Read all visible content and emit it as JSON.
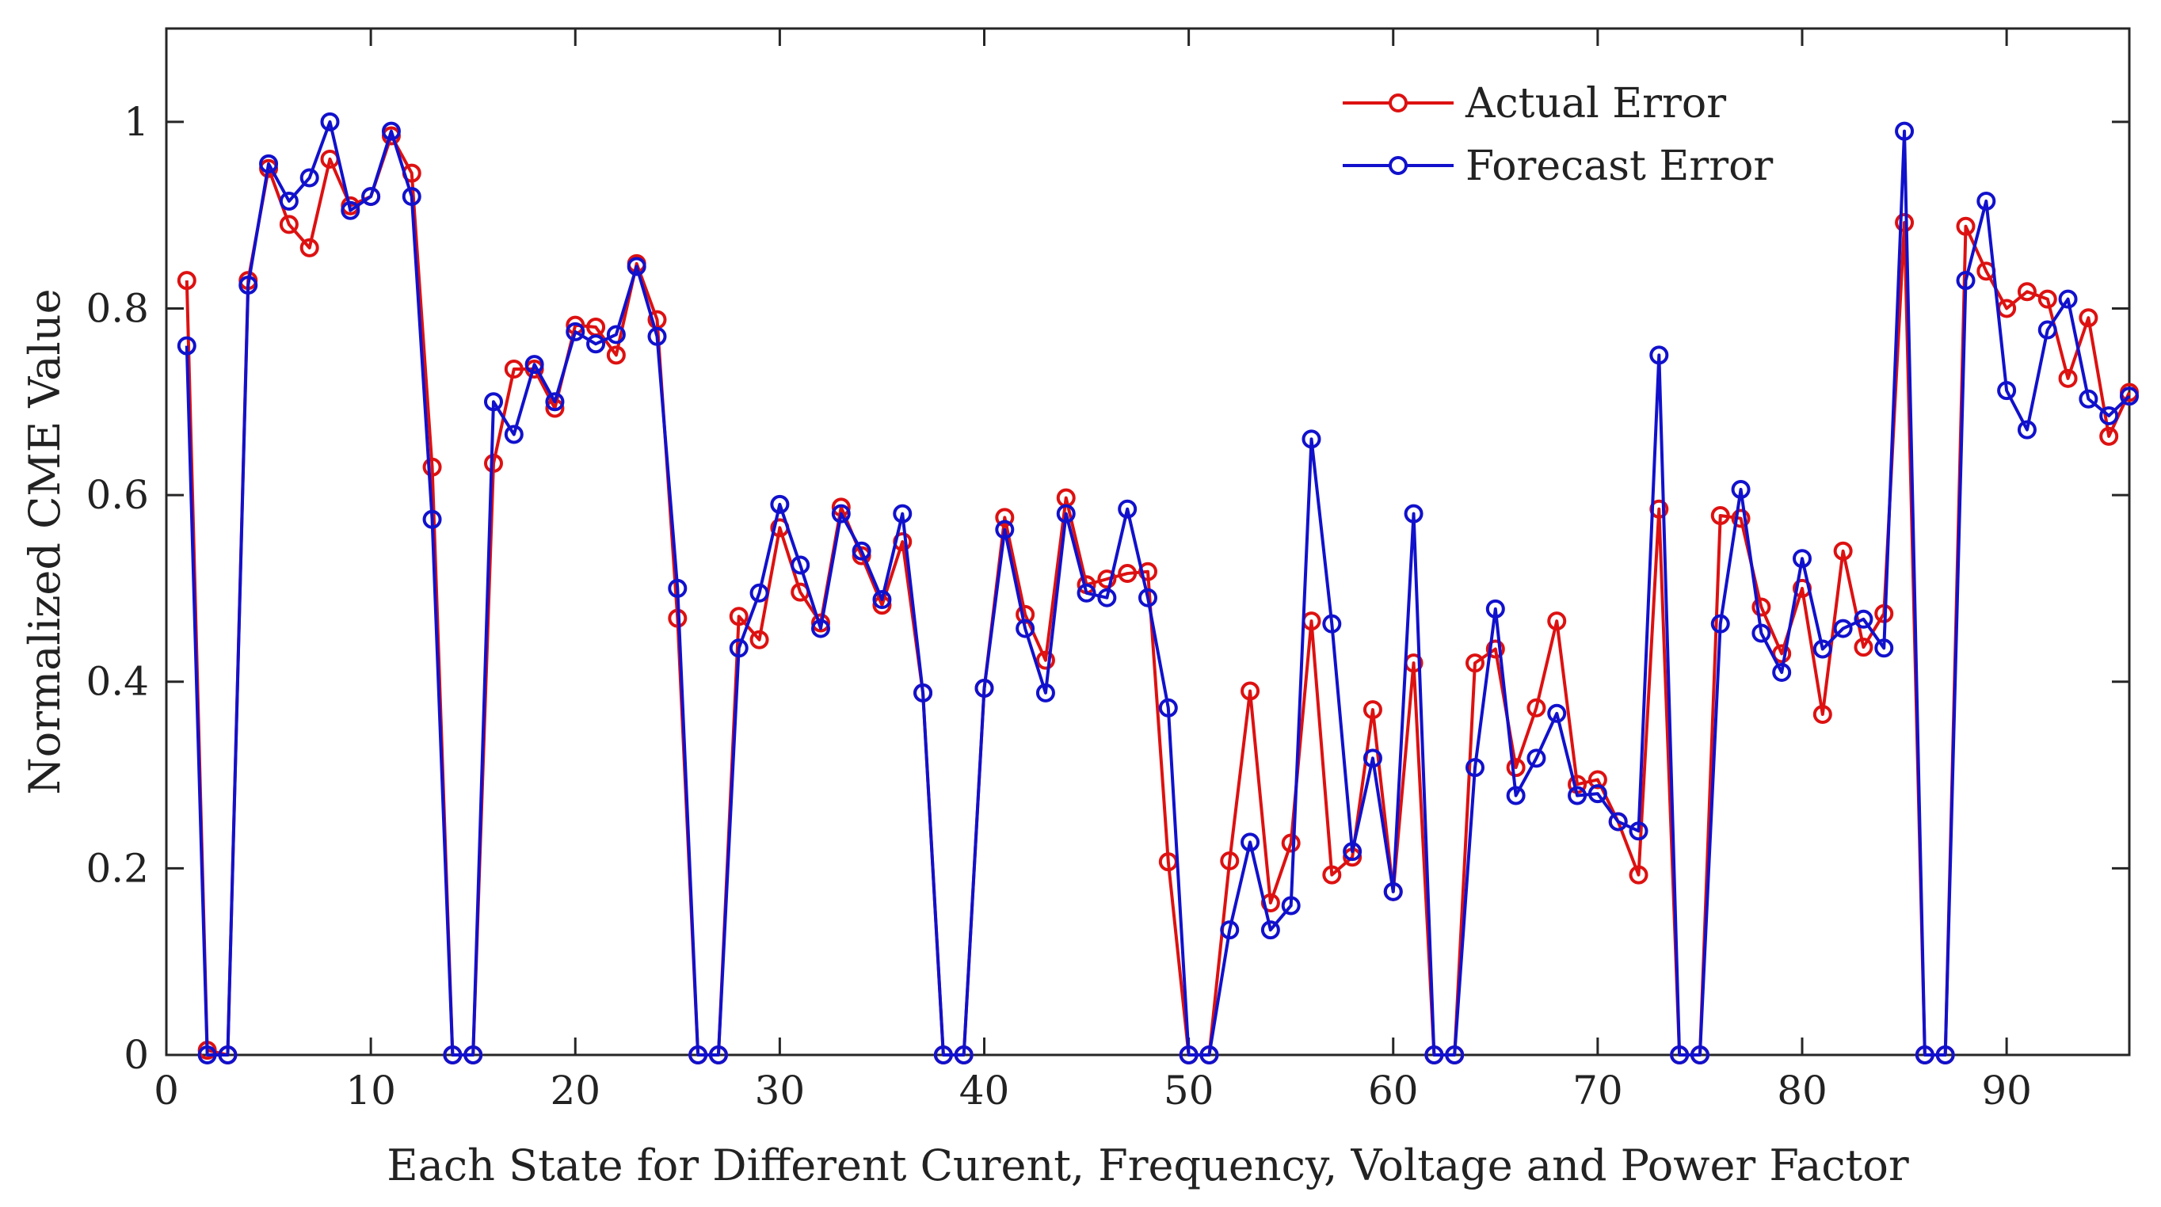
{
  "chart_data": {
    "type": "line",
    "title": "",
    "xlabel": "Each State for Different Curent, Frequency, Voltage and Power Factor",
    "ylabel": "Normalized CME Value",
    "xlim": [
      0,
      96
    ],
    "ylim": [
      0,
      1.1
    ],
    "xticks": [
      0,
      10,
      20,
      30,
      40,
      50,
      60,
      70,
      80,
      90
    ],
    "yticks": [
      0,
      0.2,
      0.4,
      0.6,
      0.8,
      1
    ],
    "xtick_labels": [
      "0",
      "10",
      "20",
      "30",
      "40",
      "50",
      "60",
      "70",
      "80",
      "90"
    ],
    "ytick_labels": [
      "0",
      "0.2",
      "0.4",
      "0.6",
      "0.8",
      "1"
    ],
    "grid": false,
    "legend_position": "top-right",
    "x": [
      1,
      2,
      3,
      4,
      5,
      6,
      7,
      8,
      9,
      10,
      11,
      12,
      13,
      14,
      15,
      16,
      17,
      18,
      19,
      20,
      21,
      22,
      23,
      24,
      25,
      26,
      27,
      28,
      29,
      30,
      31,
      32,
      33,
      34,
      35,
      36,
      37,
      38,
      39,
      40,
      41,
      42,
      43,
      44,
      45,
      46,
      47,
      48,
      49,
      50,
      51,
      52,
      53,
      54,
      55,
      56,
      57,
      58,
      59,
      60,
      61,
      62,
      63,
      64,
      65,
      66,
      67,
      68,
      69,
      70,
      71,
      72,
      73,
      74,
      75,
      76,
      77,
      78,
      79,
      80,
      81,
      82,
      83,
      84,
      85,
      86,
      87,
      88,
      89,
      90,
      91,
      92,
      93,
      94,
      95,
      96
    ],
    "series": [
      {
        "name": "Actual Error",
        "color": "#dd1111",
        "values": [
          0.83,
          0.005,
          0,
          0.83,
          0.95,
          0.89,
          0.865,
          0.96,
          0.91,
          0.92,
          0.985,
          0.945,
          0.63,
          0,
          0,
          0.634,
          0.735,
          0.735,
          0.693,
          0.782,
          0.78,
          0.75,
          0.848,
          0.788,
          0.468,
          0,
          0,
          0.47,
          0.445,
          0.565,
          0.496,
          0.463,
          0.587,
          0.535,
          0.482,
          0.55,
          0.388,
          0,
          0,
          0.393,
          0.576,
          0.472,
          0.423,
          0.597,
          0.504,
          0.51,
          0.516,
          0.518,
          0.207,
          0,
          0,
          0.208,
          0.39,
          0.163,
          0.227,
          0.465,
          0.193,
          0.212,
          0.37,
          0.175,
          0.42,
          0,
          0,
          0.42,
          0.435,
          0.308,
          0.372,
          0.465,
          0.29,
          0.295,
          0.25,
          0.193,
          0.585,
          0,
          0,
          0.578,
          0.575,
          0.48,
          0.43,
          0.5,
          0.365,
          0.54,
          0.437,
          0.473,
          0.892,
          0,
          0,
          0.888,
          0.84,
          0.8,
          0.818,
          0.81,
          0.725,
          0.79,
          0.663,
          0.71
        ]
      },
      {
        "name": "Forecast Error",
        "color": "#1111cc",
        "values": [
          0.76,
          0,
          0,
          0.825,
          0.955,
          0.915,
          0.94,
          1.0,
          0.905,
          0.92,
          0.99,
          0.92,
          0.574,
          0,
          0,
          0.7,
          0.665,
          0.74,
          0.7,
          0.775,
          0.762,
          0.772,
          0.845,
          0.77,
          0.5,
          0,
          0,
          0.436,
          0.495,
          0.59,
          0.525,
          0.457,
          0.58,
          0.54,
          0.488,
          0.58,
          0.388,
          0,
          0,
          0.393,
          0.563,
          0.457,
          0.388,
          0.58,
          0.495,
          0.49,
          0.585,
          0.49,
          0.372,
          0,
          0,
          0.134,
          0.228,
          0.134,
          0.16,
          0.66,
          0.462,
          0.218,
          0.318,
          0.175,
          0.58,
          0,
          0,
          0.308,
          0.478,
          0.278,
          0.318,
          0.366,
          0.278,
          0.28,
          0.25,
          0.24,
          0.75,
          0,
          0,
          0.462,
          0.606,
          0.452,
          0.41,
          0.532,
          0.435,
          0.457,
          0.467,
          0.436,
          0.99,
          0,
          0,
          0.83,
          0.915,
          0.712,
          0.67,
          0.777,
          0.81,
          0.703,
          0.685,
          0.706
        ]
      }
    ]
  }
}
